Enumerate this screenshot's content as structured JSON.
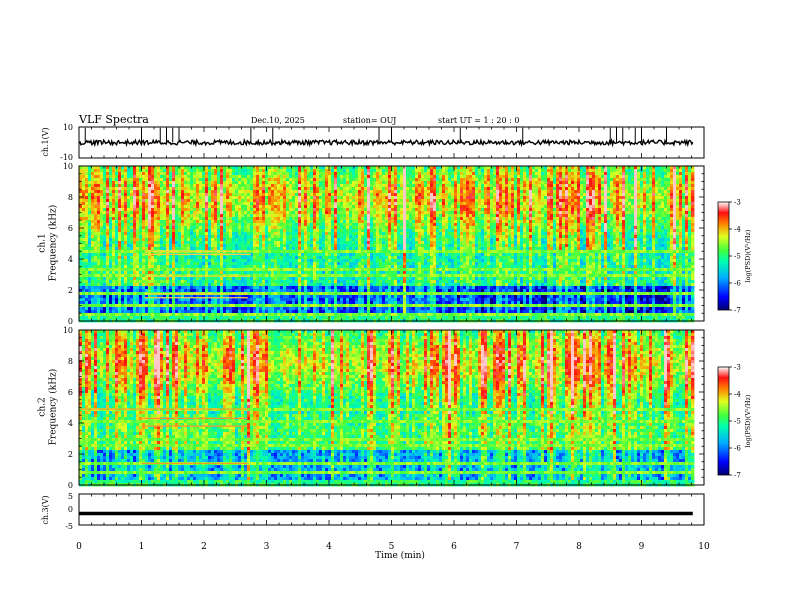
{
  "header": {
    "title": "VLF Spectra",
    "date": "Dec.10, 2025",
    "station": "station= OUJ",
    "start": "start  UT =   1 : 20 : 0"
  },
  "chart_data": [
    {
      "type": "line",
      "name": "ch1-waveform",
      "ylabel": "ch.1(V)",
      "ylim": [
        -10,
        10
      ],
      "yticks": [
        "10",
        "-10"
      ],
      "xlim": [
        0,
        10
      ],
      "description_values": {
        "baseline": 0,
        "spike_peak": 10
      }
    },
    {
      "type": "heatmap",
      "name": "ch1-spectrogram",
      "ylabel": "ch.1\nFrequency (kHz)",
      "ylabel_lines": [
        "ch.1",
        "Frequency  (kHz)"
      ],
      "ylim": [
        0,
        10
      ],
      "yticks": [
        "0",
        "2",
        "4",
        "6",
        "8",
        "10"
      ],
      "xlim": [
        0,
        9.82
      ],
      "zlim": [
        -7,
        -3
      ],
      "colorbar_label": "log(PSD)(V²/Hz)",
      "colorbar_ticks": [
        "-3",
        "-4",
        "-5",
        "-6",
        "-7"
      ],
      "bands_khz": [
        0.5,
        1.0,
        1.7,
        2.9,
        3.3,
        4.4
      ]
    },
    {
      "type": "heatmap",
      "name": "ch2-spectrogram",
      "ylabel_lines": [
        "ch.2",
        "Frequency  (kHz)"
      ],
      "ylim": [
        0,
        10
      ],
      "yticks": [
        "0",
        "2",
        "4",
        "6",
        "8",
        "10"
      ],
      "xlim": [
        0,
        9.82
      ],
      "zlim": [
        -7,
        -3
      ],
      "colorbar_label": "log(PSD)(V²/Hz)",
      "colorbar_ticks": [
        "-3",
        "-4",
        "-5",
        "-6",
        "-7"
      ],
      "bands_khz": [
        0.8,
        1.4,
        2.6,
        3.0,
        4.1,
        4.9
      ]
    },
    {
      "type": "line",
      "name": "ch3-waveform",
      "ylabel": "ch.3(V)",
      "ylim": [
        -5,
        5
      ],
      "yticks": [
        "5",
        "0",
        "-5"
      ],
      "xlim": [
        0,
        9.82
      ],
      "level": -1.3
    }
  ],
  "xaxis": {
    "label": "Time  (min)",
    "ticks": [
      "0",
      "1",
      "2",
      "3",
      "4",
      "5",
      "6",
      "7",
      "8",
      "9",
      "10"
    ],
    "range": [
      0,
      10
    ]
  }
}
